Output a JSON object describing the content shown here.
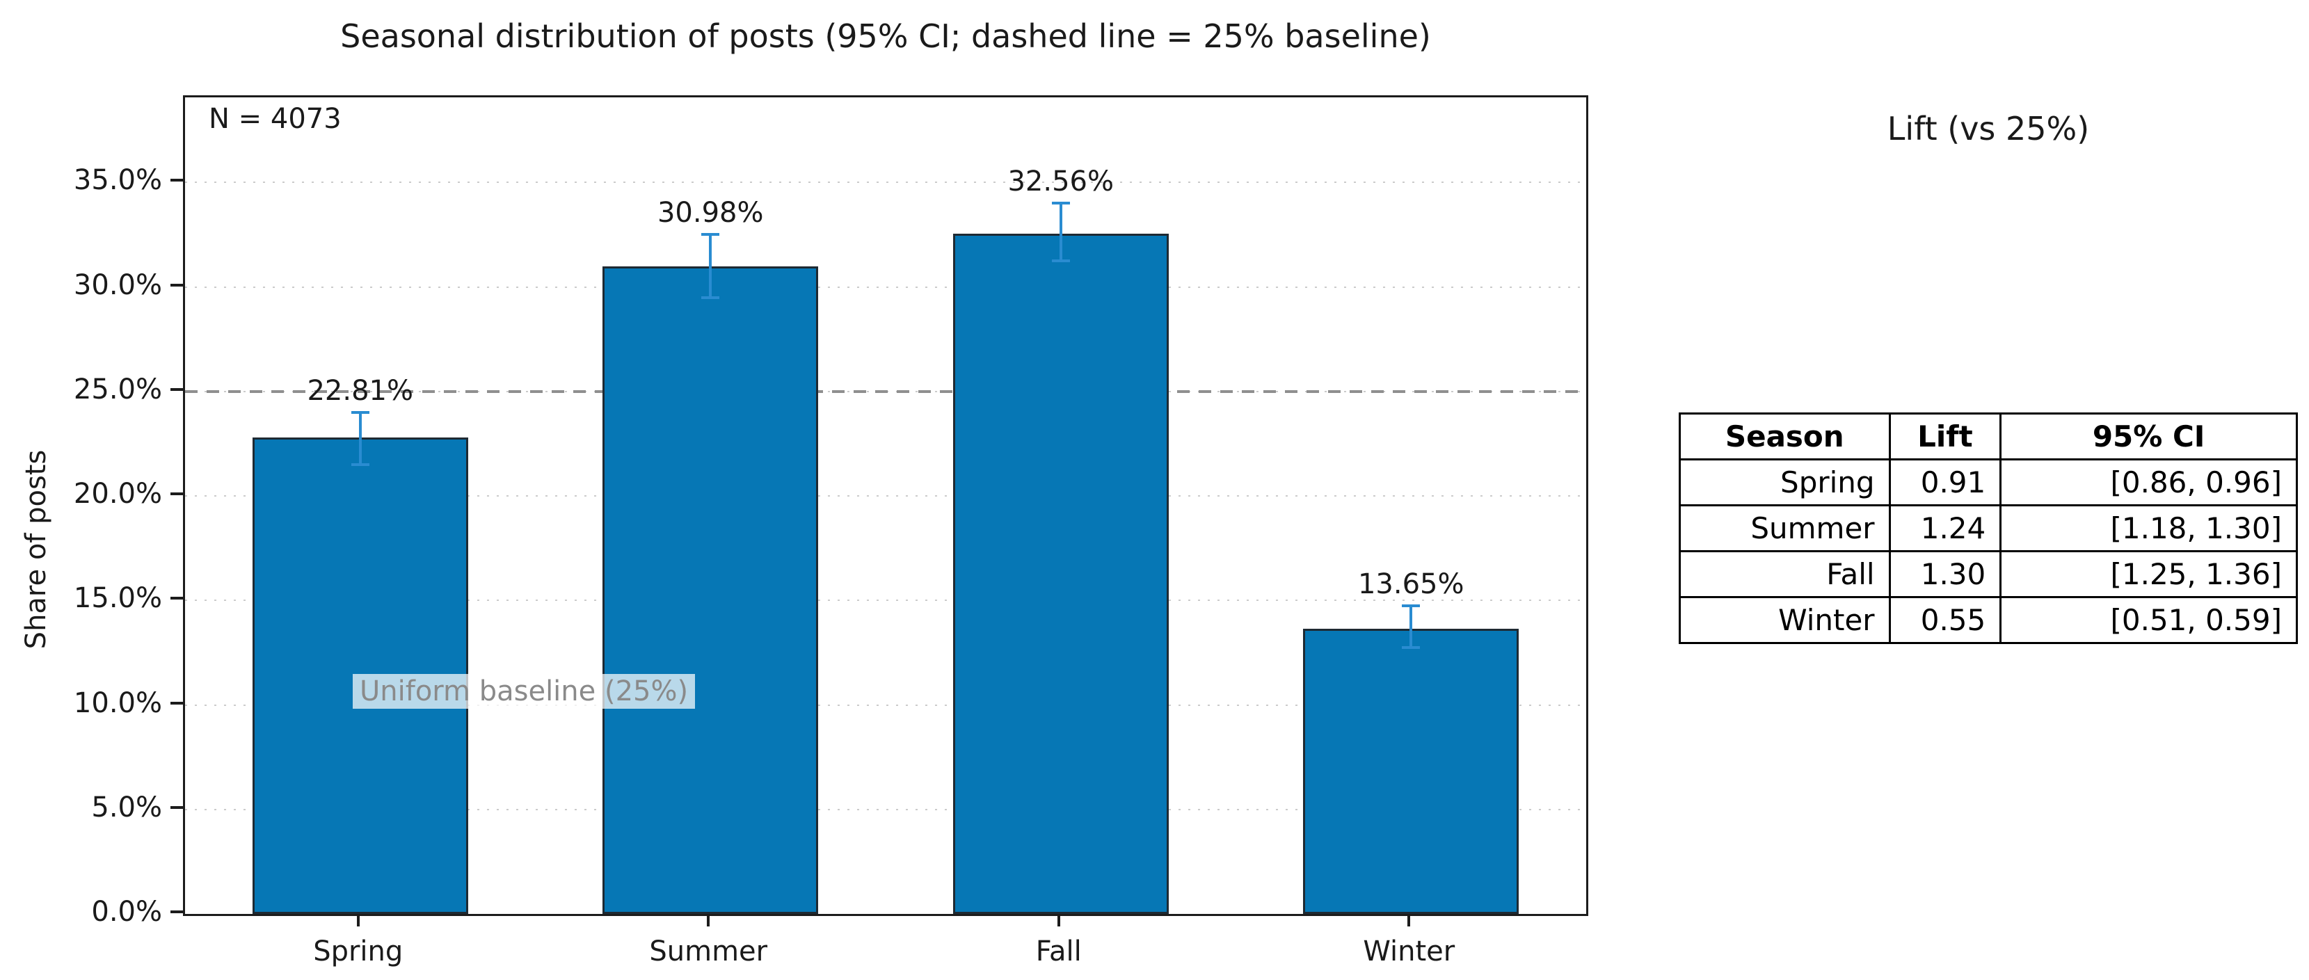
{
  "figure": {
    "title": "Seasonal distribution of posts (95% CI; dashed line = 25% baseline)",
    "ylabel": "Share of posts",
    "annotation_n": "N = 4073",
    "baseline_label": "Uniform baseline (25%)"
  },
  "chart_data": {
    "type": "bar",
    "title": "Seasonal distribution of posts (95% CI; dashed line = 25% baseline)",
    "xlabel": "",
    "ylabel": "Share of posts",
    "categories": [
      "Spring",
      "Summer",
      "Fall",
      "Winter"
    ],
    "values_pct": [
      22.81,
      30.98,
      32.56,
      13.65
    ],
    "bar_labels": [
      "22.81%",
      "30.98%",
      "32.56%",
      "13.65%"
    ],
    "ci_low_pct": [
      21.5,
      29.5,
      31.25,
      12.75
    ],
    "ci_high_pct": [
      24.0,
      32.5,
      34.0,
      14.75
    ],
    "baseline_pct": 25.0,
    "sample_size": 4073,
    "ylim_pct": [
      0,
      39.07
    ],
    "yticks_pct": [
      0,
      5,
      10,
      15,
      20,
      25,
      30,
      35
    ],
    "ytick_labels": [
      "0.0%",
      "5.0%",
      "10.0%",
      "15.0%",
      "20.0%",
      "25.0%",
      "30.0%",
      "35.0%"
    ],
    "grid": "dotted horizontal gridlines, boxed axes, legend none",
    "colors": {
      "bar_fill": "#0677b5",
      "bar_edge": "#1e2a33",
      "error_bar": "#2a8cd1",
      "baseline_dash": "#8f8f8f",
      "gridline": "#cbcbcb",
      "text": "#1a1a1a",
      "baseline_label_text": "#8a8a8a"
    }
  },
  "table": {
    "title": "Lift (vs 25%)",
    "headers": [
      "Season",
      "Lift",
      "95% CI"
    ],
    "rows": [
      [
        "Spring",
        "0.91",
        "[0.86, 0.96]"
      ],
      [
        "Summer",
        "1.24",
        "[1.18, 1.30]"
      ],
      [
        "Fall",
        "1.30",
        "[1.25, 1.36]"
      ],
      [
        "Winter",
        "0.55",
        "[0.51, 0.59]"
      ]
    ]
  }
}
